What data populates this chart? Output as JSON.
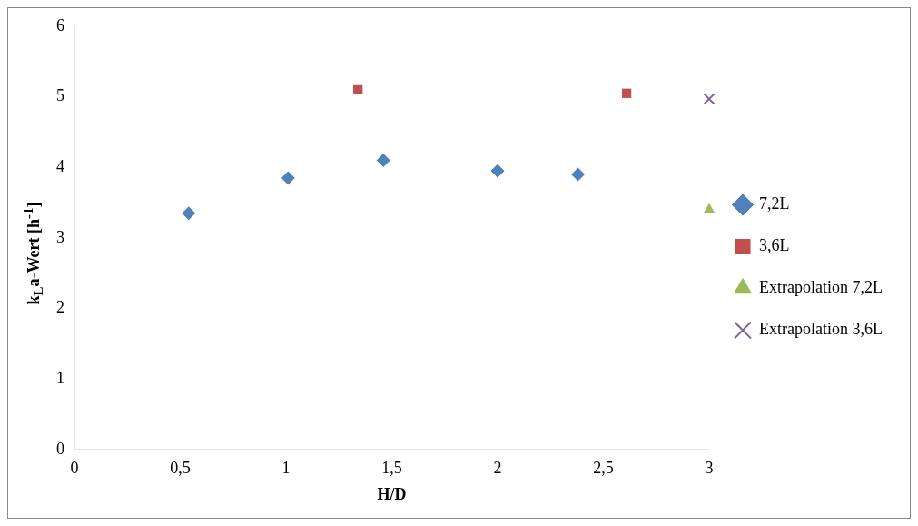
{
  "chart_data": {
    "type": "scatter",
    "xlabel": "H/D",
    "ylabel": "k$_{L}$a-Wert [h$^{-1}$]",
    "xlim": [
      0,
      3
    ],
    "ylim": [
      0,
      6
    ],
    "xticks": [
      0,
      {
        "value": 0.5,
        "label": "0,5"
      },
      1,
      {
        "value": 1.5,
        "label": "1,5"
      },
      2,
      {
        "value": 2.5,
        "label": "2,5"
      },
      3
    ],
    "yticks": [
      0,
      1,
      2,
      3,
      4,
      5,
      6
    ],
    "legend": "right",
    "series": [
      {
        "name": "7,2L",
        "color": "#4f81bd",
        "marker": "diamond",
        "x": [
          0.54,
          1.01,
          1.46,
          2.0,
          2.38
        ],
        "values": [
          3.35,
          3.85,
          4.1,
          3.95,
          3.9
        ]
      },
      {
        "name": "3,6L",
        "color": "#c0504d",
        "marker": "square",
        "x": [
          1.34,
          2.61
        ],
        "values": [
          5.1,
          5.05
        ]
      },
      {
        "name": "Extrapolation 7,2L",
        "color": "#9bbb59",
        "marker": "triangle",
        "x": [
          3
        ],
        "values": [
          3.4
        ]
      },
      {
        "name": "Extrapolation 3,6L",
        "color": "#8064a2",
        "marker": "cross",
        "x": [
          3
        ],
        "values": [
          4.97
        ]
      }
    ]
  }
}
